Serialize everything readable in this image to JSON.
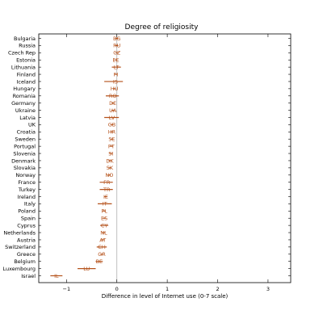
{
  "chart_data": {
    "type": "scatter",
    "title": "Degree of religiosity",
    "xlabel": "Difference in level of Internet use (0-7 scale)",
    "ylabel": "",
    "xlim": [
      -1.55,
      3.45
    ],
    "xticks": [
      -1,
      0,
      1,
      2,
      3
    ],
    "grid": false,
    "marker_color": "#b5521b",
    "points": [
      {
        "country": "Bulgaria",
        "code": "BG",
        "value": 0.0,
        "ci": [
          -0.03,
          0.03
        ]
      },
      {
        "country": "Russia",
        "code": "RU",
        "value": 0.0,
        "ci": [
          -0.03,
          0.03
        ]
      },
      {
        "country": "Czech Rep",
        "code": "CZ",
        "value": 0.0,
        "ci": [
          -0.03,
          0.03
        ]
      },
      {
        "country": "Estonia",
        "code": "EE",
        "value": -0.02,
        "ci": [
          -0.05,
          0.01
        ]
      },
      {
        "country": "Lithuania",
        "code": "LT",
        "value": -0.01,
        "ci": [
          -0.1,
          0.08
        ]
      },
      {
        "country": "Finland",
        "code": "FI",
        "value": -0.02,
        "ci": [
          -0.05,
          0.01
        ]
      },
      {
        "country": "Iceland",
        "code": "IS",
        "value": -0.03,
        "ci": [
          -0.25,
          0.12
        ]
      },
      {
        "country": "Hungary",
        "code": "HU",
        "value": -0.05,
        "ci": [
          -0.08,
          -0.02
        ]
      },
      {
        "country": "Romania",
        "code": "RO",
        "value": -0.08,
        "ci": [
          -0.22,
          0.04
        ]
      },
      {
        "country": "Germany",
        "code": "DE",
        "value": -0.08,
        "ci": [
          -0.11,
          -0.05
        ]
      },
      {
        "country": "Ukraine",
        "code": "UA",
        "value": -0.08,
        "ci": [
          -0.11,
          -0.05
        ]
      },
      {
        "country": "Latvia",
        "code": "LV",
        "value": -0.1,
        "ci": [
          -0.25,
          0.04
        ]
      },
      {
        "country": "UK",
        "code": "GB",
        "value": -0.1,
        "ci": [
          -0.13,
          -0.07
        ]
      },
      {
        "country": "Croatia",
        "code": "HR",
        "value": -0.1,
        "ci": [
          -0.13,
          -0.07
        ]
      },
      {
        "country": "Sweden",
        "code": "SE",
        "value": -0.1,
        "ci": [
          -0.13,
          -0.07
        ]
      },
      {
        "country": "Portugal",
        "code": "PT",
        "value": -0.11,
        "ci": [
          -0.14,
          -0.08
        ]
      },
      {
        "country": "Slovenia",
        "code": "SI",
        "value": -0.12,
        "ci": [
          -0.15,
          -0.09
        ]
      },
      {
        "country": "Denmark",
        "code": "DK",
        "value": -0.14,
        "ci": [
          -0.17,
          -0.11
        ]
      },
      {
        "country": "Slovakia",
        "code": "SK",
        "value": -0.14,
        "ci": [
          -0.17,
          -0.11
        ]
      },
      {
        "country": "Norway",
        "code": "NO",
        "value": -0.15,
        "ci": [
          -0.18,
          -0.12
        ]
      },
      {
        "country": "France",
        "code": "FR",
        "value": -0.2,
        "ci": [
          -0.34,
          -0.08
        ]
      },
      {
        "country": "Turkey",
        "code": "TR",
        "value": -0.2,
        "ci": [
          -0.34,
          -0.08
        ]
      },
      {
        "country": "Ireland",
        "code": "IE",
        "value": -0.22,
        "ci": [
          -0.25,
          -0.19
        ]
      },
      {
        "country": "Italy",
        "code": "IT",
        "value": -0.24,
        "ci": [
          -0.38,
          -0.1
        ]
      },
      {
        "country": "Poland",
        "code": "PL",
        "value": -0.25,
        "ci": [
          -0.28,
          -0.22
        ]
      },
      {
        "country": "Spain",
        "code": "ES",
        "value": -0.25,
        "ci": [
          -0.28,
          -0.22
        ]
      },
      {
        "country": "Cyprus",
        "code": "CY",
        "value": -0.25,
        "ci": [
          -0.33,
          -0.17
        ]
      },
      {
        "country": "Netherlands",
        "code": "NL",
        "value": -0.26,
        "ci": [
          -0.29,
          -0.23
        ]
      },
      {
        "country": "Austria",
        "code": "AT",
        "value": -0.28,
        "ci": [
          -0.31,
          -0.25
        ]
      },
      {
        "country": "Switzerland",
        "code": "CH",
        "value": -0.3,
        "ci": [
          -0.4,
          -0.2
        ]
      },
      {
        "country": "Greece",
        "code": "GR",
        "value": -0.3,
        "ci": [
          -0.33,
          -0.27
        ]
      },
      {
        "country": "Belgium",
        "code": "BE",
        "value": -0.35,
        "ci": [
          -0.42,
          -0.28
        ]
      },
      {
        "country": "Luxembourg",
        "code": "LU",
        "value": -0.6,
        "ci": [
          -0.78,
          -0.42
        ]
      },
      {
        "country": "Israel",
        "code": "IL",
        "value": -1.2,
        "ci": [
          -1.32,
          -1.08
        ]
      }
    ]
  }
}
